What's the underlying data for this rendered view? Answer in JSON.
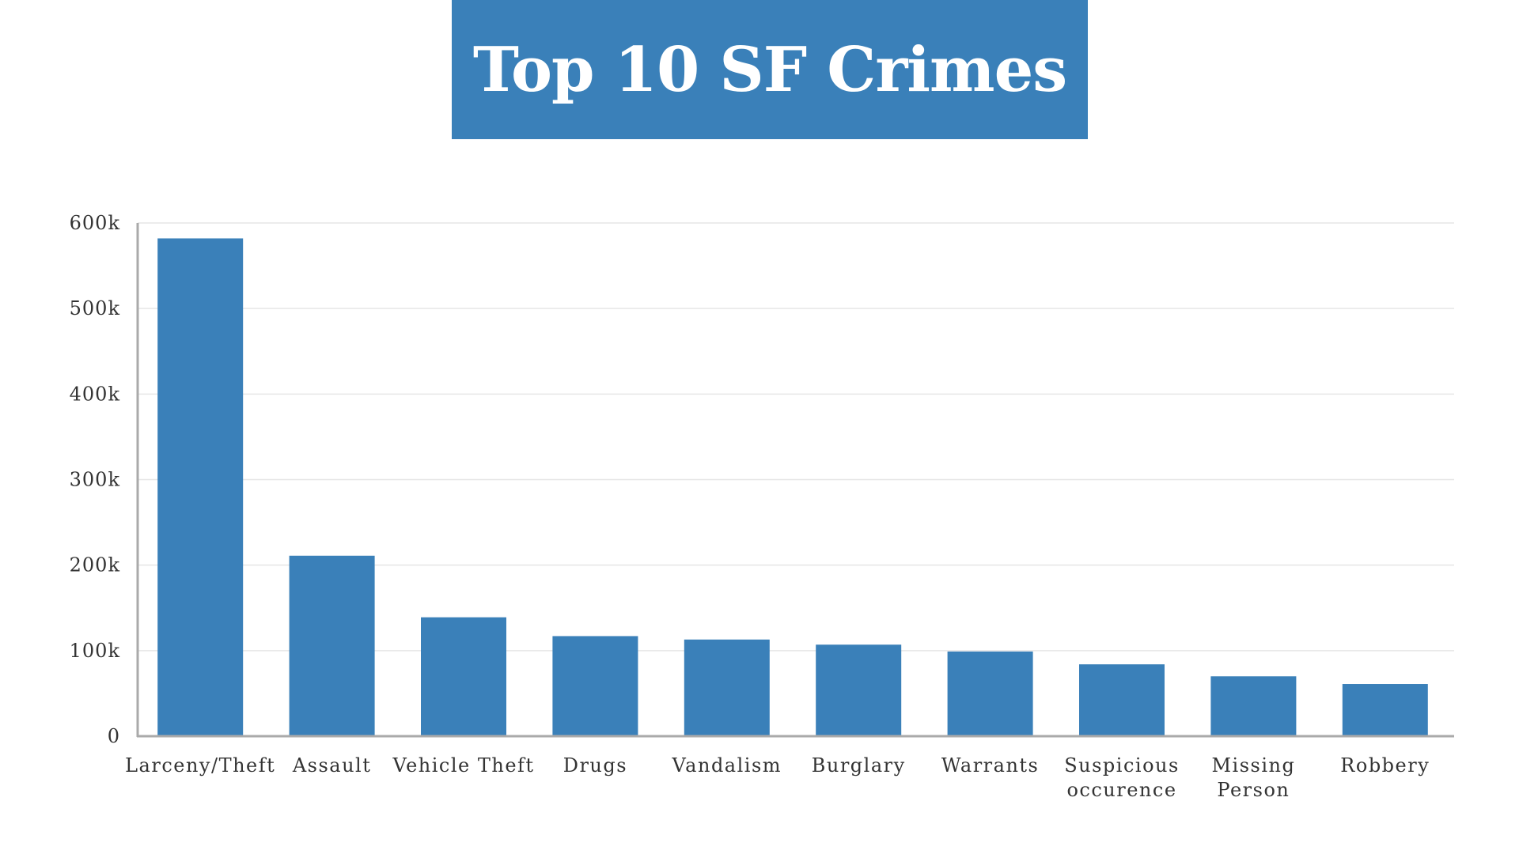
{
  "colors": {
    "bar": "#3a80b9",
    "title_bg": "#3a80b9",
    "title_text": "#ffffff",
    "grid": "#e6e6e6",
    "axis": "#aaaaaa",
    "label": "#333333"
  },
  "chart_data": {
    "type": "bar",
    "title": "Top 10 SF Crimes",
    "xlabel": "",
    "ylabel": "",
    "ylim": [
      0,
      600000
    ],
    "yticks": [
      {
        "value": 0,
        "label": "0"
      },
      {
        "value": 100000,
        "label": "100k"
      },
      {
        "value": 200000,
        "label": "200k"
      },
      {
        "value": 300000,
        "label": "300k"
      },
      {
        "value": 400000,
        "label": "400k"
      },
      {
        "value": 500000,
        "label": "500k"
      },
      {
        "value": 600000,
        "label": "600k"
      }
    ],
    "grid": true,
    "legend": "none",
    "categories": [
      [
        "Larceny/Theft"
      ],
      [
        "Assault"
      ],
      [
        "Vehicle Theft"
      ],
      [
        "Drugs"
      ],
      [
        "Vandalism"
      ],
      [
        "Burglary"
      ],
      [
        "Warrants"
      ],
      [
        "Suspicious",
        "occurence"
      ],
      [
        "Missing",
        "Person"
      ],
      [
        "Robbery"
      ]
    ],
    "values": [
      582000,
      211000,
      139000,
      117000,
      113000,
      107000,
      99000,
      84000,
      70000,
      61000
    ]
  }
}
